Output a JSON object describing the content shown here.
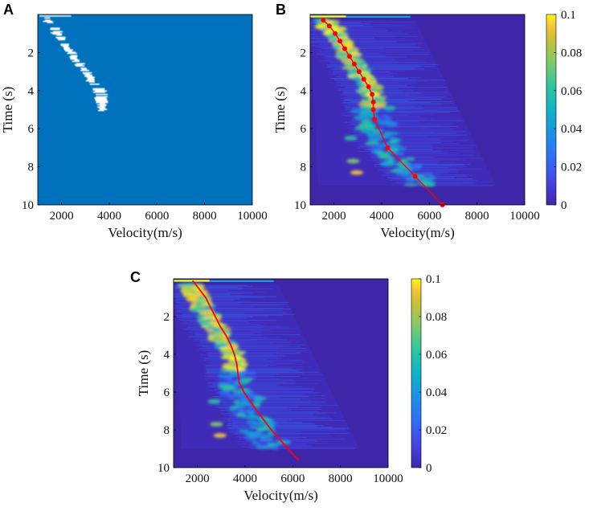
{
  "figure": {
    "panels": [
      {
        "id": "A",
        "letter": "A"
      },
      {
        "id": "B",
        "letter": "B"
      },
      {
        "id": "C",
        "letter": "C"
      }
    ]
  },
  "colors": {
    "panel_a_background": "#0072bd",
    "panel_a_energy": "#ffffff",
    "colormap": [
      "#3e26a8",
      "#4743e3",
      "#2f6ff9",
      "#1a93e4",
      "#0fb3c6",
      "#2ac7a0",
      "#7fcb6b",
      "#c8c037",
      "#f6c43a",
      "#f9f915"
    ],
    "pick_line": "#ff0000",
    "background_dark": "#3e26a8"
  },
  "chart_data": [
    {
      "panel": "A",
      "type": "heatmap",
      "title": "",
      "xlabel": "Velocity(m/s)",
      "ylabel": "Time (s)",
      "xlim": [
        1000,
        10000
      ],
      "ylim": [
        0,
        10
      ],
      "y_reversed": true,
      "xticks": [
        2000,
        4000,
        6000,
        8000,
        10000
      ],
      "yticks": [
        2,
        4,
        6,
        8,
        10
      ],
      "description_trend": {
        "time_s": [
          0.1,
          0.5,
          1.0,
          1.5,
          2.0,
          2.5,
          3.0,
          3.5,
          4.0,
          4.5,
          5.0
        ],
        "velocity_ms": [
          1300,
          1550,
          1850,
          2150,
          2400,
          2700,
          3000,
          3300,
          3600,
          3650,
          3700
        ]
      }
    },
    {
      "panel": "B",
      "type": "heatmap",
      "title": "",
      "xlabel": "Velocity(m/s)",
      "ylabel": "Time (s)",
      "xlim": [
        1000,
        10000
      ],
      "ylim": [
        0,
        10
      ],
      "y_reversed": true,
      "xticks": [
        2000,
        4000,
        6000,
        8000,
        10000
      ],
      "yticks": [
        2,
        4,
        6,
        8,
        10
      ],
      "colorbar": {
        "range": [
          0,
          0.1
        ],
        "ticks": [
          "0",
          "0.02",
          "0.04",
          "0.06",
          "0.08",
          "0.1"
        ]
      },
      "picked_points": {
        "time_s": [
          0.3,
          0.6,
          1.0,
          1.4,
          1.8,
          2.2,
          2.6,
          3.0,
          3.4,
          3.8,
          4.2,
          4.6,
          5.0,
          5.5,
          7.0,
          8.5,
          10.0
        ],
        "velocity_ms": [
          1550,
          1800,
          2050,
          2250,
          2450,
          2650,
          2850,
          3050,
          3250,
          3450,
          3600,
          3650,
          3650,
          3700,
          4250,
          5400,
          6550
        ]
      }
    },
    {
      "panel": "C",
      "type": "heatmap",
      "title": "",
      "xlabel": "Velocity(m/s)",
      "ylabel": "Time (s)",
      "xlim": [
        1000,
        10000
      ],
      "ylim": [
        0,
        10
      ],
      "y_reversed": true,
      "xticks": [
        2000,
        4000,
        6000,
        8000,
        10000
      ],
      "yticks": [
        2,
        4,
        6,
        8,
        10
      ],
      "colorbar": {
        "range": [
          0,
          0.1
        ],
        "ticks": [
          "0",
          "0.02",
          "0.04",
          "0.06",
          "0.08",
          "0.1"
        ]
      },
      "predicted_curve": {
        "time_s": [
          0.1,
          0.5,
          1.0,
          1.5,
          2.0,
          2.5,
          3.0,
          3.5,
          4.0,
          4.5,
          5.0,
          5.5,
          6.0,
          7.0,
          8.0,
          9.0,
          9.6
        ],
        "velocity_ms": [
          1800,
          2050,
          2350,
          2550,
          2750,
          2950,
          3200,
          3400,
          3550,
          3650,
          3700,
          3750,
          3950,
          4500,
          5100,
          5800,
          6250
        ]
      }
    }
  ]
}
